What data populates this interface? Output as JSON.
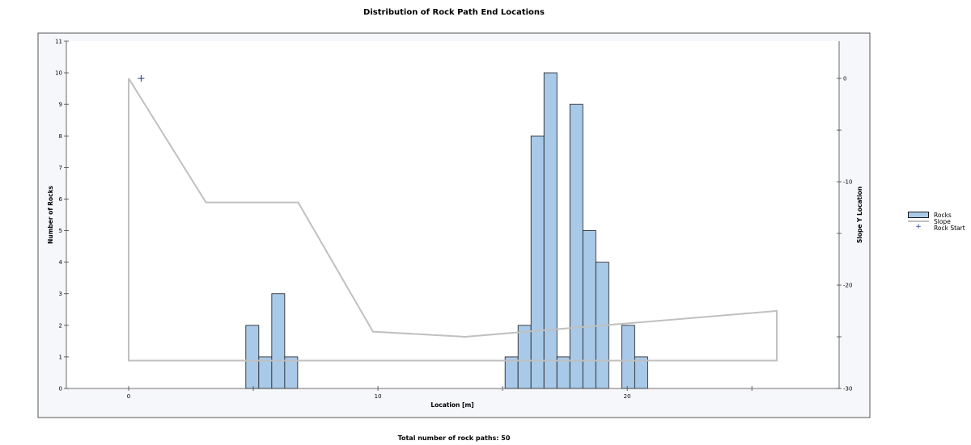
{
  "chart_data": {
    "type": "bar",
    "title": "Distribution of Rock Path End Locations",
    "xlabel": "Location [m]",
    "ylabel": "Number of Rocks",
    "y2label": "Slope Y Location",
    "xlim": [
      -2.5,
      28.5
    ],
    "ylim": [
      0,
      11
    ],
    "y2lim": [
      -30,
      3.6
    ],
    "x_ticks": [
      0,
      10,
      20
    ],
    "x_tick_labels": [
      "0",
      "10",
      "20"
    ],
    "y_ticks": [
      0,
      1,
      2,
      3,
      4,
      5,
      6,
      7,
      8,
      9,
      10,
      11
    ],
    "y_tick_labels": [
      "0",
      "1",
      "2",
      "3",
      "4",
      "5",
      "6",
      "7",
      "8",
      "9",
      "10",
      "11"
    ],
    "y2_ticks": [
      0,
      -10,
      -20,
      -30
    ],
    "y2_tick_labels": [
      "0",
      "-10",
      "-20",
      "-30"
    ],
    "bin_width": 0.52,
    "bars": [
      {
        "x": 4.7,
        "value": 2
      },
      {
        "x": 5.22,
        "value": 1
      },
      {
        "x": 5.74,
        "value": 3
      },
      {
        "x": 6.26,
        "value": 1
      },
      {
        "x": 15.1,
        "value": 1
      },
      {
        "x": 15.62,
        "value": 2
      },
      {
        "x": 16.14,
        "value": 8
      },
      {
        "x": 16.66,
        "value": 10
      },
      {
        "x": 17.18,
        "value": 1
      },
      {
        "x": 17.7,
        "value": 9
      },
      {
        "x": 18.22,
        "value": 5
      },
      {
        "x": 18.74,
        "value": 4
      },
      {
        "x": 19.78,
        "value": 2
      },
      {
        "x": 20.3,
        "value": 1
      }
    ],
    "slope": {
      "name": "Slope",
      "points": [
        [
          0,
          0
        ],
        [
          3.1,
          -12
        ],
        [
          6.8,
          -12
        ],
        [
          9.8,
          -24.5
        ],
        [
          13.5,
          -25
        ],
        [
          26,
          -22.5
        ],
        [
          26,
          -27.3
        ],
        [
          0,
          -27.3
        ],
        [
          0,
          0
        ]
      ]
    },
    "rock_start": {
      "name": "Rock Start",
      "x": 0.5,
      "y": 0
    }
  },
  "legend": {
    "rocks": "Rocks",
    "slope": "Slope",
    "rock_start": "Rock Start"
  },
  "footer": "Total number of rock paths:  50",
  "colors": {
    "bar_fill": "#a9c9e8",
    "bar_stroke": "#1a1a1a",
    "slope": "#c0c0c0",
    "rock_start": "#1a3a8f",
    "plot_bg": "#f6f7fb"
  }
}
